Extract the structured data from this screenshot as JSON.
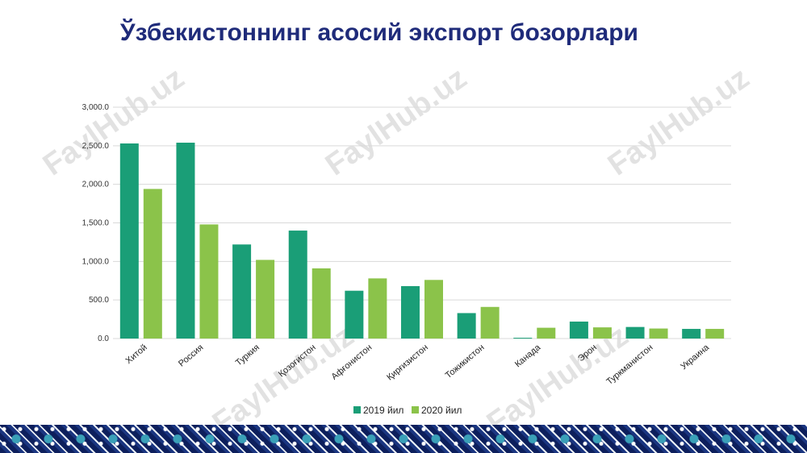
{
  "title": "Ўзбекистоннинг асосий экспорт бозорлари",
  "watermark_text": "FaylHub.uz",
  "colors": {
    "series_2019": "#1a9e77",
    "series_2020": "#8bc34a",
    "grid": "#d9d9d9",
    "title": "#1f2b7a"
  },
  "chart_data": {
    "type": "bar",
    "categories": [
      "Хитой",
      "Россия",
      "Туркия",
      "Қозоғистон",
      "Афғонистон",
      "Қирғизистон",
      "Тожикистон",
      "Канада",
      "Эрон",
      "Туркманистон",
      "Украина"
    ],
    "series": [
      {
        "name": "2019 йил",
        "values": [
          2530,
          2540,
          1220,
          1400,
          620,
          680,
          330,
          10,
          220,
          150,
          125
        ]
      },
      {
        "name": "2020 йил",
        "values": [
          1940,
          1480,
          1020,
          910,
          780,
          760,
          410,
          140,
          145,
          130,
          125
        ]
      }
    ],
    "ylim": [
      0,
      3000
    ],
    "yticks": [
      "0.0",
      "500.0",
      "1,000.0",
      "1,500.0",
      "2,000.0",
      "2,500.0",
      "3,000.0"
    ],
    "ytick_values": [
      0,
      500,
      1000,
      1500,
      2000,
      2500,
      3000
    ],
    "grid": true,
    "legend": "bottom",
    "xlabel": "",
    "ylabel": ""
  }
}
